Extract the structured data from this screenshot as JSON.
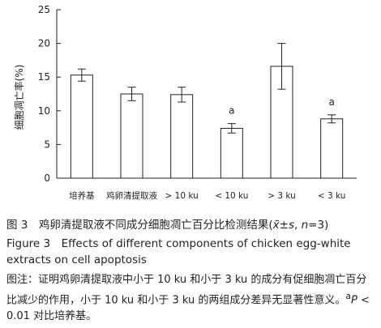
{
  "chart_data": {
    "type": "bar",
    "ylabel": "细胞凋亡率(%)",
    "xlabel": "",
    "ylim": [
      0,
      25
    ],
    "yticks": [
      0,
      5,
      10,
      15,
      20,
      25
    ],
    "grid": false,
    "categories": [
      "培养基",
      "鸡卵清提取液",
      "> 10 ku",
      "< 10 ku",
      "> 3 ku",
      "< 3 ku"
    ],
    "values": [
      15.3,
      12.5,
      12.4,
      7.4,
      16.6,
      8.8
    ],
    "errors": [
      0.9,
      1.0,
      1.1,
      0.7,
      3.4,
      0.6
    ],
    "significance": [
      "",
      "",
      "",
      "a",
      "",
      "a"
    ]
  },
  "caption": {
    "cn_title_prefix": "图 3　鸡卵清提取液不同成分细胞凋亡百分比检测结果(",
    "cn_title_stat": "x̄±s",
    "cn_title_mid": ", ",
    "cn_title_n": "n",
    "cn_title_suffix": "=3)",
    "en_title": "Figure 3　Effects of different components of chicken egg-white extracts on cell apoptosis",
    "note_main": "图注：证明鸡卵清提取液中小于 10 ku 和小于 3 ku 的成分有促细胞凋亡百分比减少的作用，小于 10 ku 和小于 3 ku 的两组成分差异无显著性意义。",
    "note_sup": "a",
    "note_p": "P",
    "note_tail": " < 0.01 对比培养基。"
  }
}
